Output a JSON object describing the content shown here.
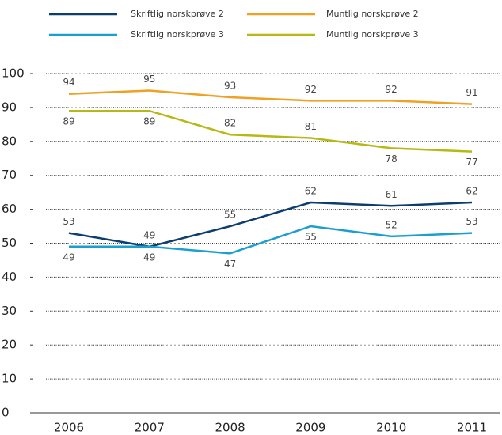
{
  "chart_data": {
    "type": "line",
    "categories": [
      "2006",
      "2007",
      "2008",
      "2009",
      "2010",
      "2011"
    ],
    "series": [
      {
        "name": "Skriftlig norskprøve 2",
        "color": "#0b3d6e",
        "values": [
          53,
          49,
          55,
          62,
          61,
          62
        ]
      },
      {
        "name": "Muntlig norskprøve 2",
        "color": "#f0a023",
        "values": [
          94,
          95,
          93,
          92,
          92,
          91
        ]
      },
      {
        "name": "Skriftlig norskprøve 3",
        "color": "#1c9fcf",
        "values": [
          49,
          49,
          47,
          55,
          52,
          53
        ]
      },
      {
        "name": "Muntlig norskprøve 3",
        "color": "#b7b814",
        "values": [
          89,
          89,
          82,
          81,
          78,
          77
        ]
      }
    ],
    "ylim": [
      0,
      100
    ],
    "yticks": [
      0,
      10,
      20,
      30,
      40,
      50,
      60,
      70,
      80,
      90,
      100
    ],
    "grid": true
  }
}
